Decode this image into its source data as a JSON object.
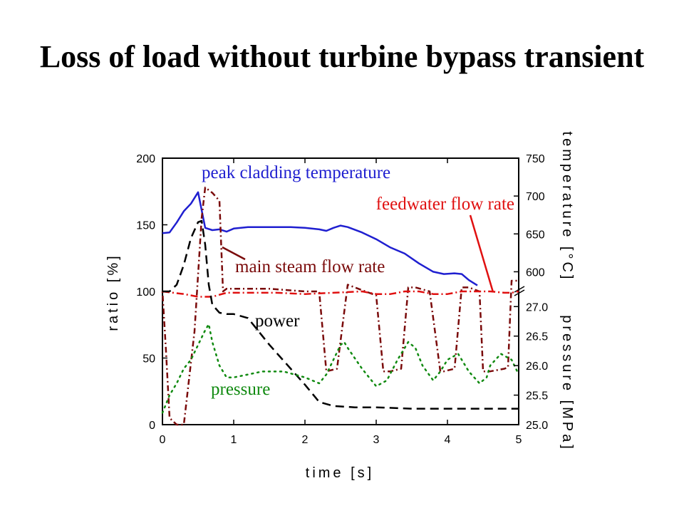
{
  "title": "Loss of load without turbine bypass transient",
  "chart_data": {
    "type": "line",
    "xlabel": "time [s]",
    "ylabel_left": "ratio [%]",
    "ylabel_right_upper": "temperature [°C]",
    "ylabel_right_lower": "pressure [MPa]",
    "xlim": [
      0,
      5
    ],
    "ylim_left": [
      0,
      200
    ],
    "ylim_temperature": [
      575,
      750
    ],
    "ylim_pressure": [
      25.0,
      27.1
    ],
    "x_ticks": [
      "0",
      "1",
      "2",
      "3",
      "4",
      "5"
    ],
    "y_ticks_left": [
      "0",
      "50",
      "100",
      "150",
      "200"
    ],
    "y_ticks_temperature": [
      "600",
      "650",
      "700",
      "750"
    ],
    "y_ticks_pressure": [
      "25.0",
      "25.5",
      "26.0",
      "26.5",
      "27.0"
    ],
    "annotations": [
      {
        "text": "peak cladding temperature",
        "color": "#1f1fd0"
      },
      {
        "text": "feedwater flow rate",
        "color": "#e01010"
      },
      {
        "text": "main steam flow rate",
        "color": "#7a0a0a"
      },
      {
        "text": "power",
        "color": "#000000"
      },
      {
        "text": "pressure",
        "color": "#108a10"
      }
    ],
    "series": [
      {
        "name": "peak cladding temperature",
        "axis": "temperature",
        "color": "#1f1fd0",
        "style": "solid",
        "x": [
          0,
          0.1,
          0.2,
          0.3,
          0.4,
          0.5,
          0.6,
          0.7,
          0.8,
          0.9,
          1.0,
          1.2,
          1.5,
          1.8,
          2.0,
          2.2,
          2.3,
          2.4,
          2.5,
          2.6,
          2.8,
          3.0,
          3.2,
          3.4,
          3.6,
          3.8,
          3.95,
          4.1,
          4.2,
          4.3,
          4.42
        ],
        "y": [
          651,
          652,
          665,
          680,
          690,
          705,
          658,
          655,
          656,
          653,
          657,
          659,
          659,
          659,
          658,
          656,
          654,
          658,
          661,
          659,
          652,
          643,
          632,
          624,
          611,
          600,
          597,
          598,
          597,
          589,
          582
        ]
      },
      {
        "name": "main steam flow rate",
        "axis": "ratio",
        "color": "#7a0a0a",
        "style": "dot-dash",
        "x": [
          0,
          0.05,
          0.1,
          0.2,
          0.3,
          0.45,
          0.55,
          0.6,
          0.7,
          0.8,
          0.85,
          0.9,
          1.0,
          1.5,
          2.0,
          2.2,
          2.3,
          2.45,
          2.6,
          2.75,
          2.85,
          3.0,
          3.1,
          3.2,
          3.35,
          3.45,
          3.55,
          3.75,
          3.9,
          3.95,
          4.1,
          4.2,
          4.3,
          4.45,
          4.5,
          4.6,
          4.8,
          4.85,
          4.9,
          4.95,
          5.0
        ],
        "y": [
          100,
          55,
          5,
          0,
          0,
          70,
          155,
          178,
          174,
          168,
          100,
          102,
          102,
          102,
          100,
          100,
          40,
          42,
          105,
          102,
          100,
          97,
          40,
          40,
          42,
          103,
          103,
          100,
          40,
          40,
          42,
          103,
          103,
          100,
          40,
          40,
          42,
          43,
          108,
          108,
          108
        ]
      },
      {
        "name": "feedwater flow rate",
        "axis": "ratio",
        "color": "#e01010",
        "style": "dash-dot",
        "x": [
          0,
          0.3,
          0.5,
          0.7,
          0.9,
          1.2,
          1.6,
          2.0,
          2.4,
          2.8,
          3.0,
          3.2,
          3.4,
          3.6,
          3.8,
          4.0,
          4.2,
          4.4,
          4.6,
          4.8,
          4.9,
          5.0
        ],
        "y": [
          100,
          98,
          96,
          96,
          99,
          99,
          99,
          98,
          99,
          100,
          98,
          98,
          100,
          100,
          98,
          98,
          100,
          100,
          100,
          99,
          99,
          100
        ]
      },
      {
        "name": "power",
        "axis": "ratio",
        "color": "#000000",
        "style": "dashed",
        "x": [
          0,
          0.1,
          0.2,
          0.3,
          0.4,
          0.5,
          0.55,
          0.6,
          0.65,
          0.7,
          0.8,
          0.9,
          1.0,
          1.2,
          1.5,
          1.8,
          2.0,
          2.2,
          2.4,
          2.7,
          3.0,
          3.5,
          4.0,
          4.5,
          5.0
        ],
        "y": [
          100,
          100,
          105,
          120,
          140,
          152,
          153,
          135,
          105,
          90,
          84,
          83,
          83,
          80,
          60,
          42,
          30,
          17,
          14,
          13,
          13,
          12,
          12,
          12,
          12
        ]
      },
      {
        "name": "pressure",
        "axis": "pressure",
        "color": "#108a10",
        "style": "dotted",
        "x": [
          0,
          0.1,
          0.2,
          0.3,
          0.4,
          0.5,
          0.6,
          0.65,
          0.7,
          0.8,
          0.9,
          1.0,
          1.2,
          1.4,
          1.7,
          2.0,
          2.2,
          2.3,
          2.5,
          2.55,
          2.6,
          2.8,
          3.0,
          3.15,
          3.3,
          3.45,
          3.55,
          3.65,
          3.8,
          3.9,
          4.0,
          4.15,
          4.3,
          4.45,
          4.55,
          4.6,
          4.75,
          4.9,
          5.0
        ],
        "y": [
          25.2,
          25.5,
          25.7,
          25.95,
          26.1,
          26.35,
          26.6,
          26.7,
          26.4,
          26.0,
          25.8,
          25.8,
          25.85,
          25.9,
          25.9,
          25.8,
          25.7,
          25.85,
          26.35,
          26.4,
          26.3,
          25.95,
          25.65,
          25.75,
          26.1,
          26.4,
          26.3,
          26.0,
          25.75,
          25.9,
          26.1,
          26.2,
          25.9,
          25.7,
          25.8,
          26.0,
          26.2,
          26.1,
          25.85
        ]
      }
    ]
  }
}
